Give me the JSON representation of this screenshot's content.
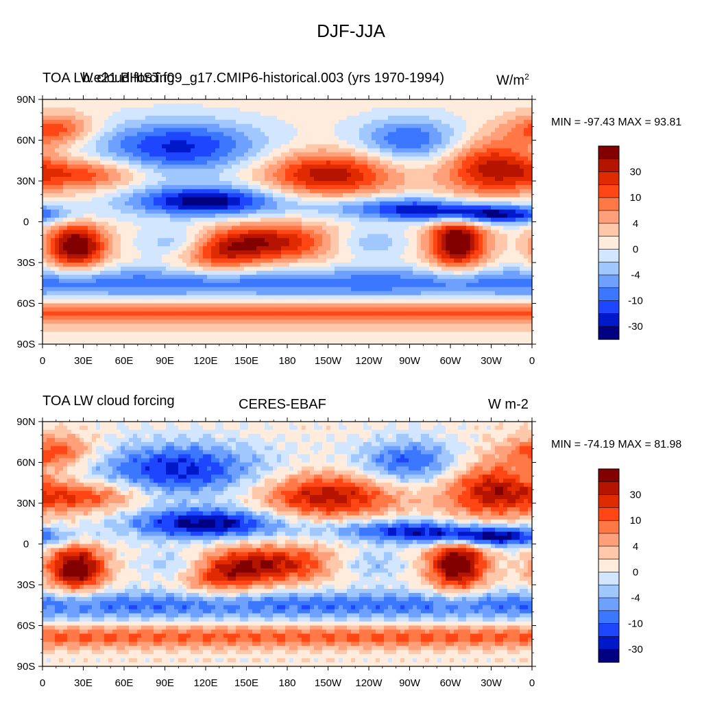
{
  "title": "DJF-JJA",
  "colors": [
    "#000080",
    "#0019c8",
    "#1e46ff",
    "#3c78ff",
    "#6ea0ff",
    "#a0c8ff",
    "#d2e6ff",
    "#ffecdc",
    "#ffc8aa",
    "#ffa07a",
    "#ff7846",
    "#ff4614",
    "#e02a00",
    "#b41400",
    "#820000"
  ],
  "colorbar_labels": [
    "30",
    "10",
    "4",
    "0",
    "-4",
    "-10",
    "-30"
  ],
  "lat_labels": [
    "90N",
    "60N",
    "30N",
    "0",
    "30S",
    "60S",
    "90S"
  ],
  "lon_labels": [
    "0",
    "30E",
    "60E",
    "90E",
    "120E",
    "150E",
    "180",
    "150W",
    "120W",
    "90W",
    "60W",
    "30W",
    "0"
  ],
  "panels": [
    {
      "left_title": "TOA LW cloud forcing",
      "center_title": "b.e21.BHIST.f09_g17.CMIP6-historical.003 (yrs 1970-1994)",
      "units_text": "W/m",
      "units_sup": "2",
      "minmax": "MIN = -97.43 MAX =  93.81"
    },
    {
      "left_title": "TOA LW cloud forcing",
      "center_title": "CERES-EBAF",
      "units_text": "W m-2",
      "units_sup": "",
      "minmax": "MIN = -74.19 MAX =  81.98"
    }
  ]
}
